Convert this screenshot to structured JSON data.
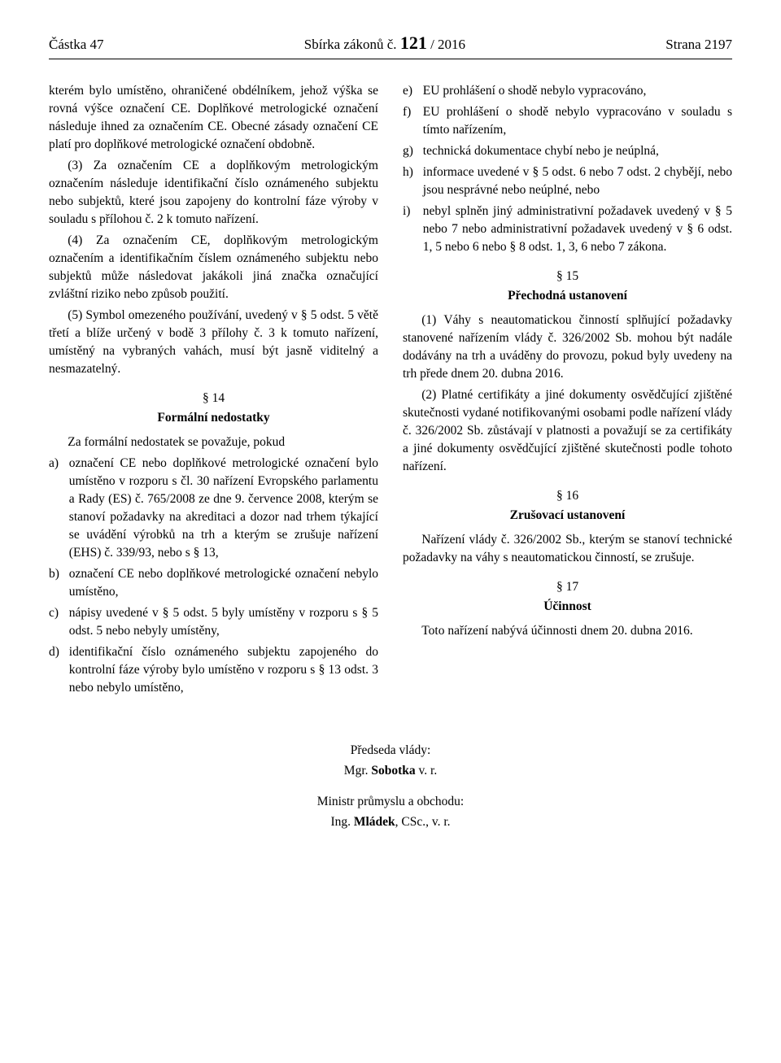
{
  "header": {
    "left": "Částka 47",
    "mid_prefix": "Sbírka zákonů č. ",
    "mid_bold": "121",
    "mid_suffix": " / 2016",
    "right": "Strana 2197"
  },
  "left_col": {
    "p1": "kterém bylo umístěno, ohraničené obdélníkem, jehož výška se rovná výšce označení CE. Doplňkové metrologické označení následuje ihned za označením CE. Obecné zásady označení CE platí pro doplňkové metrologické označení obdobně.",
    "p2": "(3) Za označením CE a doplňkovým metrologickým označením následuje identifikační číslo oznámeného subjektu nebo subjektů, které jsou zapojeny do kontrolní fáze výroby v souladu s přílohou č. 2 k tomuto nařízení.",
    "p3": "(4) Za označením CE, doplňkovým metrologickým označením a identifikačním číslem oznámeného subjektu nebo subjektů může následovat jakákoli jiná značka označující zvláštní riziko nebo způsob použití.",
    "p4": "(5) Symbol omezeného používání, uvedený v § 5 odst. 5 větě třetí a blíže určený v bodě 3 přílohy č. 3 k tomuto nařízení, umístěný na vybraných vahách, musí být jasně viditelný a nesmazatelný.",
    "s14_num": "§ 14",
    "s14_title": "Formální nedostatky",
    "s14_intro": "Za formální nedostatek se považuje, pokud",
    "s14_items": [
      {
        "m": "a)",
        "t": "označení CE nebo doplňkové metrologické označení bylo umístěno v rozporu s čl. 30 nařízení Evropského parlamentu a Rady (ES) č. 765/2008 ze dne 9. července 2008, kterým se stanoví požadavky na akreditaci a dozor nad trhem týkající se uvádění výrobků na trh a kterým se zrušuje nařízení (EHS) č. 339/93, nebo s § 13,"
      },
      {
        "m": "b)",
        "t": "označení CE nebo doplňkové metrologické označení nebylo umístěno,"
      },
      {
        "m": "c)",
        "t": "nápisy uvedené v § 5 odst. 5 byly umístěny v rozporu s § 5 odst. 5 nebo nebyly umístěny,"
      },
      {
        "m": "d)",
        "t": "identifikační číslo oznámeného subjektu zapojeného do kontrolní fáze výroby bylo umístěno v rozporu s § 13 odst. 3 nebo nebylo umístěno,"
      }
    ]
  },
  "right_col": {
    "items": [
      {
        "m": "e)",
        "t": "EU prohlášení o shodě nebylo vypracováno,"
      },
      {
        "m": "f)",
        "t": "EU prohlášení o shodě nebylo vypracováno v souladu s tímto nařízením,"
      },
      {
        "m": "g)",
        "t": "technická dokumentace chybí nebo je neúplná,"
      },
      {
        "m": "h)",
        "t": "informace uvedené v § 5 odst. 6 nebo 7 odst. 2 chybějí, nebo jsou nesprávné nebo neúplné, nebo"
      },
      {
        "m": "i)",
        "t": "nebyl splněn jiný administrativní požadavek uvedený v § 5 nebo 7 nebo administrativní požadavek uvedený v § 6 odst. 1, 5 nebo 6 nebo § 8 odst. 1, 3, 6 nebo 7 zákona."
      }
    ],
    "s15_num": "§ 15",
    "s15_title": "Přechodná ustanovení",
    "s15_p1": "(1) Váhy s neautomatickou činností splňující požadavky stanovené nařízením vlády č. 326/2002 Sb. mohou být nadále dodávány na trh a uváděny do provozu, pokud byly uvedeny na trh přede dnem 20. dubna 2016.",
    "s15_p2": "(2) Platné certifikáty a jiné dokumenty osvědčující zjištěné skutečnosti vydané notifikovanými osobami podle nařízení vlády č. 326/2002 Sb. zůstávají v platnosti a považují se za certifikáty a jiné dokumenty osvědčující zjištěné skutečnosti podle tohoto nařízení.",
    "s16_num": "§ 16",
    "s16_title": "Zrušovací ustanovení",
    "s16_p": "Nařízení vlády č. 326/2002 Sb., kterým se stanoví technické požadavky na váhy s neautomatickou činností, se zrušuje.",
    "s17_num": "§ 17",
    "s17_title": "Účinnost",
    "s17_p": "Toto nařízení nabývá účinnosti dnem 20. dubna 2016."
  },
  "signatures": {
    "role1": "Předseda vlády:",
    "name1_pre": "Mgr. ",
    "name1_bold": "Sobotka",
    "name1_suf": " v. r.",
    "role2": "Ministr průmyslu a obchodu:",
    "name2_pre": "Ing. ",
    "name2_bold": "Mládek",
    "name2_suf": ", CSc., v. r."
  }
}
